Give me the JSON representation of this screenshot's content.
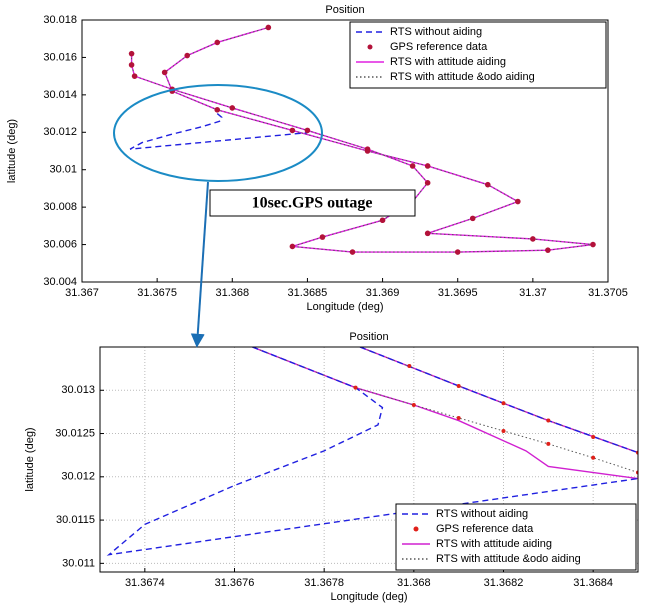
{
  "annotation": "10sec.GPS outage",
  "chart_data": [
    {
      "type": "line",
      "title": "Position",
      "xlabel": "Longitude (deg)",
      "ylabel": "latitude (deg)",
      "xlim": [
        31.367,
        31.3705
      ],
      "xticks": [
        31.367,
        31.3675,
        31.368,
        31.3685,
        31.369,
        31.3695,
        31.37,
        31.3705
      ],
      "ylim": [
        30.004,
        30.018
      ],
      "yticks": [
        30.004,
        30.006,
        30.008,
        30.01,
        30.012,
        30.014,
        30.016,
        30.018
      ],
      "grid": false,
      "legend": "upper right",
      "series": [
        {
          "name": "RTS without aiding",
          "color": "#2020e0",
          "style": "dashed",
          "x": [
            31.3679,
            31.36793,
            31.36792,
            31.3678,
            31.3676,
            31.3674,
            31.36732,
            31.3685
          ],
          "values": [
            30.013,
            30.0128,
            30.0126,
            30.0123,
            30.0119,
            30.01145,
            30.0111,
            30.01198
          ]
        },
        {
          "name": "GPS  reference data",
          "color": "#b3123a",
          "style": "markers",
          "x": [
            31.36733,
            31.36733,
            31.36735,
            31.3676,
            31.368,
            31.3685,
            31.3689,
            31.3692,
            31.3693,
            31.3692,
            31.369,
            31.3686,
            31.3684,
            31.3688,
            31.3695,
            31.3701,
            31.3704,
            31.37,
            31.3693,
            31.3696,
            31.3699,
            31.3697,
            31.3693,
            31.3689,
            31.3684,
            31.3679,
            31.3676,
            31.36755,
            31.3677,
            31.3679,
            31.36824
          ],
          "values": [
            30.0162,
            30.0156,
            30.015,
            30.0143,
            30.0133,
            30.0121,
            30.0111,
            30.0102,
            30.0093,
            30.0083,
            30.0073,
            30.0064,
            30.0059,
            30.0056,
            30.0056,
            30.0057,
            30.006,
            30.0063,
            30.0066,
            30.0074,
            30.0083,
            30.0092,
            30.0102,
            30.011,
            30.0121,
            30.0132,
            30.0142,
            30.0152,
            30.0161,
            30.0168,
            30.0176
          ]
        },
        {
          "name": "RTS with attitude aiding",
          "color": "#e020e0",
          "style": "solid",
          "x": [
            31.36733,
            31.36733,
            31.36735,
            31.3676,
            31.368,
            31.3685,
            31.3689,
            31.3692,
            31.3693,
            31.3692,
            31.369,
            31.3686,
            31.3684,
            31.3688,
            31.3695,
            31.3701,
            31.3704,
            31.37,
            31.3693,
            31.3696,
            31.3699,
            31.3697,
            31.3693,
            31.3689,
            31.3684,
            31.3679,
            31.3676,
            31.36755,
            31.3677,
            31.3679,
            31.36824
          ],
          "values": [
            30.0162,
            30.0156,
            30.015,
            30.0143,
            30.0133,
            30.0121,
            30.0111,
            30.0102,
            30.0093,
            30.0083,
            30.0073,
            30.0064,
            30.0059,
            30.0056,
            30.0056,
            30.0057,
            30.006,
            30.0063,
            30.0066,
            30.0074,
            30.0083,
            30.0092,
            30.0102,
            30.011,
            30.0121,
            30.0132,
            30.0142,
            30.0152,
            30.0161,
            30.0168,
            30.0176
          ]
        },
        {
          "name": "RTS with attitude &odo aiding",
          "color": "#555555",
          "style": "dotted",
          "x": [
            31.36733,
            31.36733,
            31.36735,
            31.3676,
            31.368,
            31.3685,
            31.3689,
            31.3692,
            31.3693,
            31.3692,
            31.369,
            31.3686,
            31.3684,
            31.3688,
            31.3695,
            31.3701,
            31.3704,
            31.37,
            31.3693,
            31.3696,
            31.3699,
            31.3697,
            31.3693,
            31.3689,
            31.3684,
            31.3679,
            31.3676,
            31.36755,
            31.3677,
            31.3679,
            31.36824
          ],
          "values": [
            30.0162,
            30.0156,
            30.015,
            30.0143,
            30.0133,
            30.0121,
            30.0111,
            30.0102,
            30.0093,
            30.0083,
            30.0073,
            30.0064,
            30.0059,
            30.0056,
            30.0056,
            30.0057,
            30.006,
            30.0063,
            30.0066,
            30.0074,
            30.0083,
            30.0092,
            30.0102,
            30.011,
            30.0121,
            30.0132,
            30.0142,
            30.0152,
            30.0161,
            30.0168,
            30.0176
          ]
        }
      ]
    },
    {
      "type": "line",
      "title": "Position",
      "xlabel": "Longitude (deg)",
      "ylabel": "latitude (deg)",
      "xlim": [
        31.3673,
        31.3685
      ],
      "xticks": [
        31.3674,
        31.3676,
        31.3678,
        31.368,
        31.3682,
        31.3684
      ],
      "ylim": [
        30.0109,
        30.0135
      ],
      "yticks": [
        30.011,
        30.0115,
        30.012,
        30.0125,
        30.013
      ],
      "grid": true,
      "legend": "lower right",
      "series": [
        {
          "name": "RTS without aiding",
          "color": "#2020e0",
          "style": "dashed",
          "x": [
            31.36788,
            31.3681,
            31.3683,
            31.3685,
            null,
            31.36764,
            31.36787,
            31.36793,
            31.36792,
            31.3678,
            31.3676,
            31.3674,
            31.36732,
            31.3685
          ],
          "values": [
            30.0135,
            30.01305,
            30.01265,
            30.01228,
            null,
            30.0135,
            30.01303,
            30.0128,
            30.0126,
            30.0123,
            30.0119,
            30.01145,
            30.0111,
            30.01198
          ]
        },
        {
          "name": "GPS  reference data",
          "color": "#e0201a",
          "style": "markers",
          "x": [
            31.36799,
            31.3681,
            31.3682,
            31.3683,
            31.3684,
            31.3685,
            31.36787,
            31.368,
            31.3681,
            31.3682,
            31.3683,
            31.3684,
            31.3685
          ],
          "values": [
            30.01328,
            30.01305,
            30.01285,
            30.01265,
            30.01246,
            30.01228,
            30.01303,
            30.01283,
            30.01268,
            30.01253,
            30.01238,
            30.01222,
            30.01205
          ]
        },
        {
          "name": "RTS with attitude aiding",
          "color": "#d020d0",
          "style": "solid",
          "x": [
            31.36788,
            31.3681,
            31.3683,
            31.3685,
            null,
            31.36764,
            31.36787,
            31.368,
            31.3681,
            31.36825,
            31.3683,
            31.3685
          ],
          "values": [
            30.0135,
            30.01305,
            30.01265,
            30.01228,
            null,
            30.0135,
            30.01303,
            30.01283,
            30.01265,
            30.0123,
            30.01212,
            30.01198
          ]
        },
        {
          "name": "RTS with attitude &odo aiding",
          "color": "#555555",
          "style": "dotted",
          "x": [
            31.36788,
            31.3681,
            31.3683,
            31.3685,
            null,
            31.36764,
            31.36787,
            31.368,
            31.3681,
            31.3682,
            31.3683,
            31.3684,
            31.3685
          ],
          "values": [
            30.0135,
            30.01305,
            30.01265,
            30.01228,
            null,
            30.0135,
            30.01303,
            30.01283,
            30.01268,
            30.01253,
            30.01238,
            30.01222,
            30.01205
          ]
        }
      ]
    }
  ]
}
